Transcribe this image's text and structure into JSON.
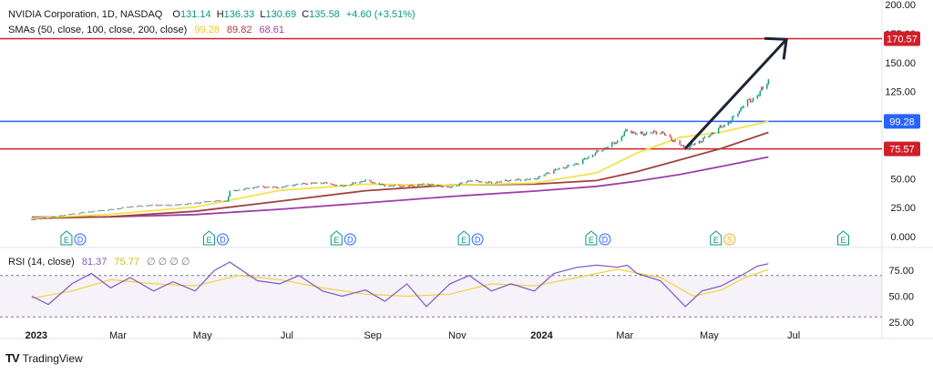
{
  "header": {
    "symbol": "NVIDIA Corporation, 1D, NASDAQ",
    "open_label": "O",
    "open": "131.14",
    "high_label": "H",
    "high": "136.33",
    "low_label": "L",
    "low": "130.69",
    "close_label": "C",
    "close": "135.58",
    "change": "+4.60 (+3.51%)"
  },
  "sma_legend": {
    "label": "SMAs (50, close, 100, close, 200, close)",
    "sma50": "99.28",
    "sma100": "89.82",
    "sma200": "68.61"
  },
  "rsi_legend": {
    "label": "RSI (14, close)",
    "rsi": "81.37",
    "rsi_ma": "75.77",
    "placeholders": "∅ ∅ ∅ ∅"
  },
  "footer": {
    "brand": "TradingView"
  },
  "colors": {
    "up": "#089981",
    "down": "#f23645",
    "sma50": "#f2e34a",
    "sma100": "#a0423f",
    "sma200": "#9c3ea8",
    "hline_red": "#d01f2a",
    "hline_blue": "#2962ff",
    "rsi_line": "#7e57c2",
    "rsi_ma": "#f2d23a",
    "arrow": "#1e2433"
  },
  "chart_data": [
    {
      "type": "line",
      "title": "NVIDIA Corporation, 1D, NASDAQ",
      "x_labels": [
        "2023",
        "Mar",
        "May",
        "Jul",
        "Sep",
        "Nov",
        "2024",
        "Mar",
        "May",
        "Jul"
      ],
      "y_ticks": [
        0,
        25,
        50,
        75,
        100,
        125,
        150,
        175,
        200
      ],
      "y_tick_labels": [
        "0.000",
        "25.00",
        "50.00",
        "75.00",
        "100.00",
        "125.00",
        "150.00",
        "175.00",
        "200.00"
      ],
      "ylim": [
        0,
        200
      ],
      "series": [
        {
          "name": "Price",
          "x": [
            "2023-01-03",
            "2023-01-17",
            "2023-02-01",
            "2023-02-15",
            "2023-03-01",
            "2023-03-15",
            "2023-04-01",
            "2023-04-15",
            "2023-05-01",
            "2023-05-15",
            "2023-05-24",
            "2023-05-26",
            "2023-06-15",
            "2023-07-01",
            "2023-07-15",
            "2023-08-01",
            "2023-08-15",
            "2023-09-01",
            "2023-09-15",
            "2023-10-01",
            "2023-10-15",
            "2023-11-01",
            "2023-11-15",
            "2023-12-01",
            "2023-12-15",
            "2024-01-01",
            "2024-01-15",
            "2024-02-01",
            "2024-02-15",
            "2024-03-01",
            "2024-03-08",
            "2024-03-15",
            "2024-04-01",
            "2024-04-19",
            "2024-05-01",
            "2024-05-15",
            "2024-05-22",
            "2024-06-01",
            "2024-06-10",
            "2024-06-18"
          ],
          "values": [
            14.6,
            16.8,
            19.5,
            21.6,
            23.3,
            25.8,
            27.2,
            27.1,
            28.9,
            30.9,
            30.6,
            38.9,
            42.9,
            42.4,
            45.4,
            46.5,
            43.5,
            48.4,
            43.9,
            43.5,
            45.5,
            42.3,
            48.4,
            46.4,
            48.6,
            49.5,
            57.1,
            63.0,
            72.6,
            82.2,
            92.2,
            88.2,
            90.3,
            76.2,
            83.0,
            94.6,
            100.0,
            114.8,
            120.9,
            135.6
          ]
        },
        {
          "name": "SMA 50",
          "x": [
            "2023-01-03",
            "2023-03-01",
            "2023-05-01",
            "2023-07-01",
            "2023-09-01",
            "2023-11-01",
            "2024-01-01",
            "2024-02-15",
            "2024-03-15",
            "2024-04-15",
            "2024-05-15",
            "2024-06-18"
          ],
          "values": [
            15.8,
            19.2,
            25.5,
            39.8,
            45.2,
            44.3,
            46.2,
            55.0,
            72.0,
            85.5,
            90.0,
            99.3
          ]
        },
        {
          "name": "SMA 100",
          "x": [
            "2023-01-03",
            "2023-03-01",
            "2023-05-01",
            "2023-07-01",
            "2023-09-01",
            "2023-11-01",
            "2024-01-01",
            "2024-02-15",
            "2024-03-15",
            "2024-04-15",
            "2024-05-15",
            "2024-06-18"
          ],
          "values": [
            15.6,
            17.2,
            21.8,
            30.5,
            39.5,
            44.5,
            45.2,
            48.3,
            56.0,
            66.0,
            76.0,
            89.8
          ]
        },
        {
          "name": "SMA 200",
          "x": [
            "2023-01-03",
            "2023-03-01",
            "2023-05-01",
            "2023-07-01",
            "2023-09-01",
            "2023-11-01",
            "2024-01-01",
            "2024-02-15",
            "2024-03-15",
            "2024-04-15",
            "2024-05-15",
            "2024-06-18"
          ],
          "values": [
            16.8,
            17.0,
            19.0,
            23.5,
            29.0,
            34.5,
            39.2,
            43.3,
            47.8,
            53.5,
            60.5,
            68.6
          ]
        }
      ],
      "hlines": [
        {
          "value": 170.57,
          "label": "170.57",
          "color": "#d01f2a"
        },
        {
          "value": 99.28,
          "label": "99.28",
          "color": "#2962ff"
        },
        {
          "value": 75.57,
          "label": "75.57",
          "color": "#d01f2a"
        }
      ],
      "arrow": {
        "from": {
          "x": "2024-04-19",
          "y": 76
        },
        "to": {
          "x": "2024-07-01",
          "y": 170
        }
      },
      "events": [
        {
          "x": "2023-02-01",
          "labels": [
            "E",
            "D"
          ]
        },
        {
          "x": "2023-05-15",
          "labels": [
            "E",
            "D"
          ]
        },
        {
          "x": "2023-08-15",
          "labels": [
            "E",
            "D"
          ]
        },
        {
          "x": "2023-11-15",
          "labels": [
            "E",
            "D"
          ]
        },
        {
          "x": "2024-02-15",
          "labels": [
            "E",
            "D"
          ]
        },
        {
          "x": "2024-05-15",
          "labels": [
            "E",
            "S"
          ]
        },
        {
          "x": "2024-08-15",
          "labels": [
            "E"
          ]
        }
      ]
    },
    {
      "type": "line",
      "title": "RSI (14, close)",
      "y_ticks": [
        25,
        50,
        75
      ],
      "y_tick_labels": [
        "25.00",
        "50.00",
        "75.00"
      ],
      "ylim": [
        25,
        90
      ],
      "bands": [
        30,
        70
      ],
      "series": [
        {
          "name": "RSI",
          "x": [
            "2023-01-03",
            "2023-01-15",
            "2023-02-01",
            "2023-02-15",
            "2023-03-01",
            "2023-03-15",
            "2023-04-01",
            "2023-04-15",
            "2023-05-01",
            "2023-05-15",
            "2023-05-26",
            "2023-06-15",
            "2023-07-01",
            "2023-07-15",
            "2023-08-01",
            "2023-08-15",
            "2023-09-01",
            "2023-09-15",
            "2023-10-01",
            "2023-10-15",
            "2023-11-01",
            "2023-11-15",
            "2023-12-01",
            "2023-12-15",
            "2024-01-01",
            "2024-01-15",
            "2024-02-01",
            "2024-02-15",
            "2024-03-01",
            "2024-03-08",
            "2024-03-15",
            "2024-04-01",
            "2024-04-19",
            "2024-05-01",
            "2024-05-15",
            "2024-06-01",
            "2024-06-10",
            "2024-06-18"
          ],
          "values": [
            50,
            42,
            62,
            72,
            58,
            68,
            55,
            64,
            55,
            75,
            83,
            65,
            62,
            70,
            55,
            50,
            56,
            45,
            62,
            40,
            62,
            70,
            55,
            62,
            55,
            72,
            78,
            80,
            78,
            80,
            72,
            65,
            40,
            55,
            60,
            72,
            79,
            81.4
          ]
        },
        {
          "name": "RSI MA",
          "x": [
            "2023-01-03",
            "2023-02-01",
            "2023-03-01",
            "2023-04-01",
            "2023-05-01",
            "2023-06-01",
            "2023-07-01",
            "2023-08-01",
            "2023-09-01",
            "2023-10-01",
            "2023-11-01",
            "2023-12-01",
            "2024-01-01",
            "2024-02-01",
            "2024-03-01",
            "2024-04-01",
            "2024-04-25",
            "2024-05-15",
            "2024-06-01",
            "2024-06-18"
          ],
          "values": [
            48,
            55,
            66,
            62,
            60,
            70,
            66,
            58,
            52,
            50,
            52,
            62,
            60,
            68,
            76,
            68,
            50,
            56,
            68,
            75.8
          ]
        }
      ]
    }
  ]
}
